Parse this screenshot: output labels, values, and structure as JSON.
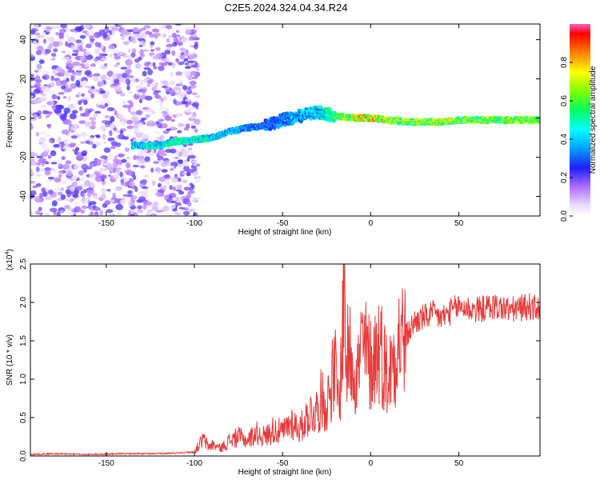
{
  "title": "C2E5.2024.324.04.34.R24",
  "chart_data": [
    {
      "type": "heatmap",
      "xlabel": "Height of straight line (km)",
      "ylabel": "Frequency (Hz)",
      "xlim": [
        -193,
        96
      ],
      "ylim": [
        -50,
        48
      ],
      "xticks": [
        -150,
        -100,
        -50,
        0,
        50
      ],
      "yticks": [
        -40,
        -20,
        0,
        20,
        40
      ],
      "colorbar": {
        "label": "Normalized spectral amplitude",
        "range": [
          0.0,
          1.0
        ],
        "ticks": [
          0.0,
          0.2,
          0.4,
          0.6,
          0.8
        ]
      },
      "ridge": {
        "x": [
          -135,
          -120,
          -110,
          -100,
          -90,
          -80,
          -70,
          -60,
          -50,
          -45,
          -40,
          -35,
          -30,
          -25,
          -20,
          -10,
          0,
          10,
          20,
          30,
          40,
          50,
          60,
          70,
          80,
          90,
          96
        ],
        "freq": [
          -14,
          -14,
          -12,
          -11,
          -10,
          -7,
          -5,
          -4,
          -1,
          0,
          1,
          2,
          3,
          2,
          1,
          0,
          0,
          -1,
          -2,
          -2,
          -2,
          -1,
          -1,
          -1,
          -1,
          -1,
          -1
        ],
        "amplitude": [
          0.45,
          0.5,
          0.55,
          0.55,
          0.5,
          0.45,
          0.4,
          0.35,
          0.35,
          0.4,
          0.4,
          0.45,
          0.5,
          0.55,
          0.6,
          0.8,
          0.85,
          0.75,
          0.7,
          0.7,
          0.75,
          0.7,
          0.7,
          0.7,
          0.7,
          0.7,
          0.7
        ]
      }
    },
    {
      "type": "line",
      "xlabel": "Height of straight line (km)",
      "ylabel": "SNR (10 * v/v)",
      "multiplier": "(x10",
      "multiplier_exp": "4",
      "multiplier_close": ")",
      "xlim": [
        -193,
        96
      ],
      "ylim": [
        0,
        2.5
      ],
      "xticks": [
        -150,
        -100,
        -50,
        0,
        50
      ],
      "yticks": [
        0.0,
        0.5,
        1.0,
        1.5,
        2.0,
        2.5
      ],
      "series": [
        {
          "color": "#e83a3a",
          "x": [
            -193,
            -180,
            -160,
            -140,
            -120,
            -110,
            -105,
            -100,
            -98,
            -95,
            -92,
            -90,
            -85,
            -80,
            -75,
            -70,
            -65,
            -60,
            -55,
            -50,
            -45,
            -40,
            -35,
            -30,
            -28,
            -25,
            -22,
            -20,
            -18,
            -16,
            -15,
            -14,
            -12,
            -10,
            -8,
            -5,
            0,
            5,
            10,
            15,
            20,
            25,
            30,
            35,
            40,
            50,
            60,
            70,
            80,
            90,
            96
          ],
          "values": [
            0.02,
            0.03,
            0.02,
            0.03,
            0.03,
            0.04,
            0.05,
            0.05,
            0.12,
            0.22,
            0.12,
            0.15,
            0.1,
            0.2,
            0.25,
            0.2,
            0.3,
            0.25,
            0.35,
            0.3,
            0.45,
            0.35,
            0.55,
            0.6,
            0.75,
            0.65,
            1.0,
            1.1,
            0.6,
            1.6,
            2.5,
            1.2,
            1.35,
            1.3,
            1.0,
            1.45,
            1.2,
            1.45,
            1.0,
            1.5,
            1.55,
            1.75,
            1.8,
            1.85,
            1.8,
            1.95,
            1.9,
            1.95,
            1.9,
            1.95,
            1.9
          ]
        }
      ]
    }
  ]
}
